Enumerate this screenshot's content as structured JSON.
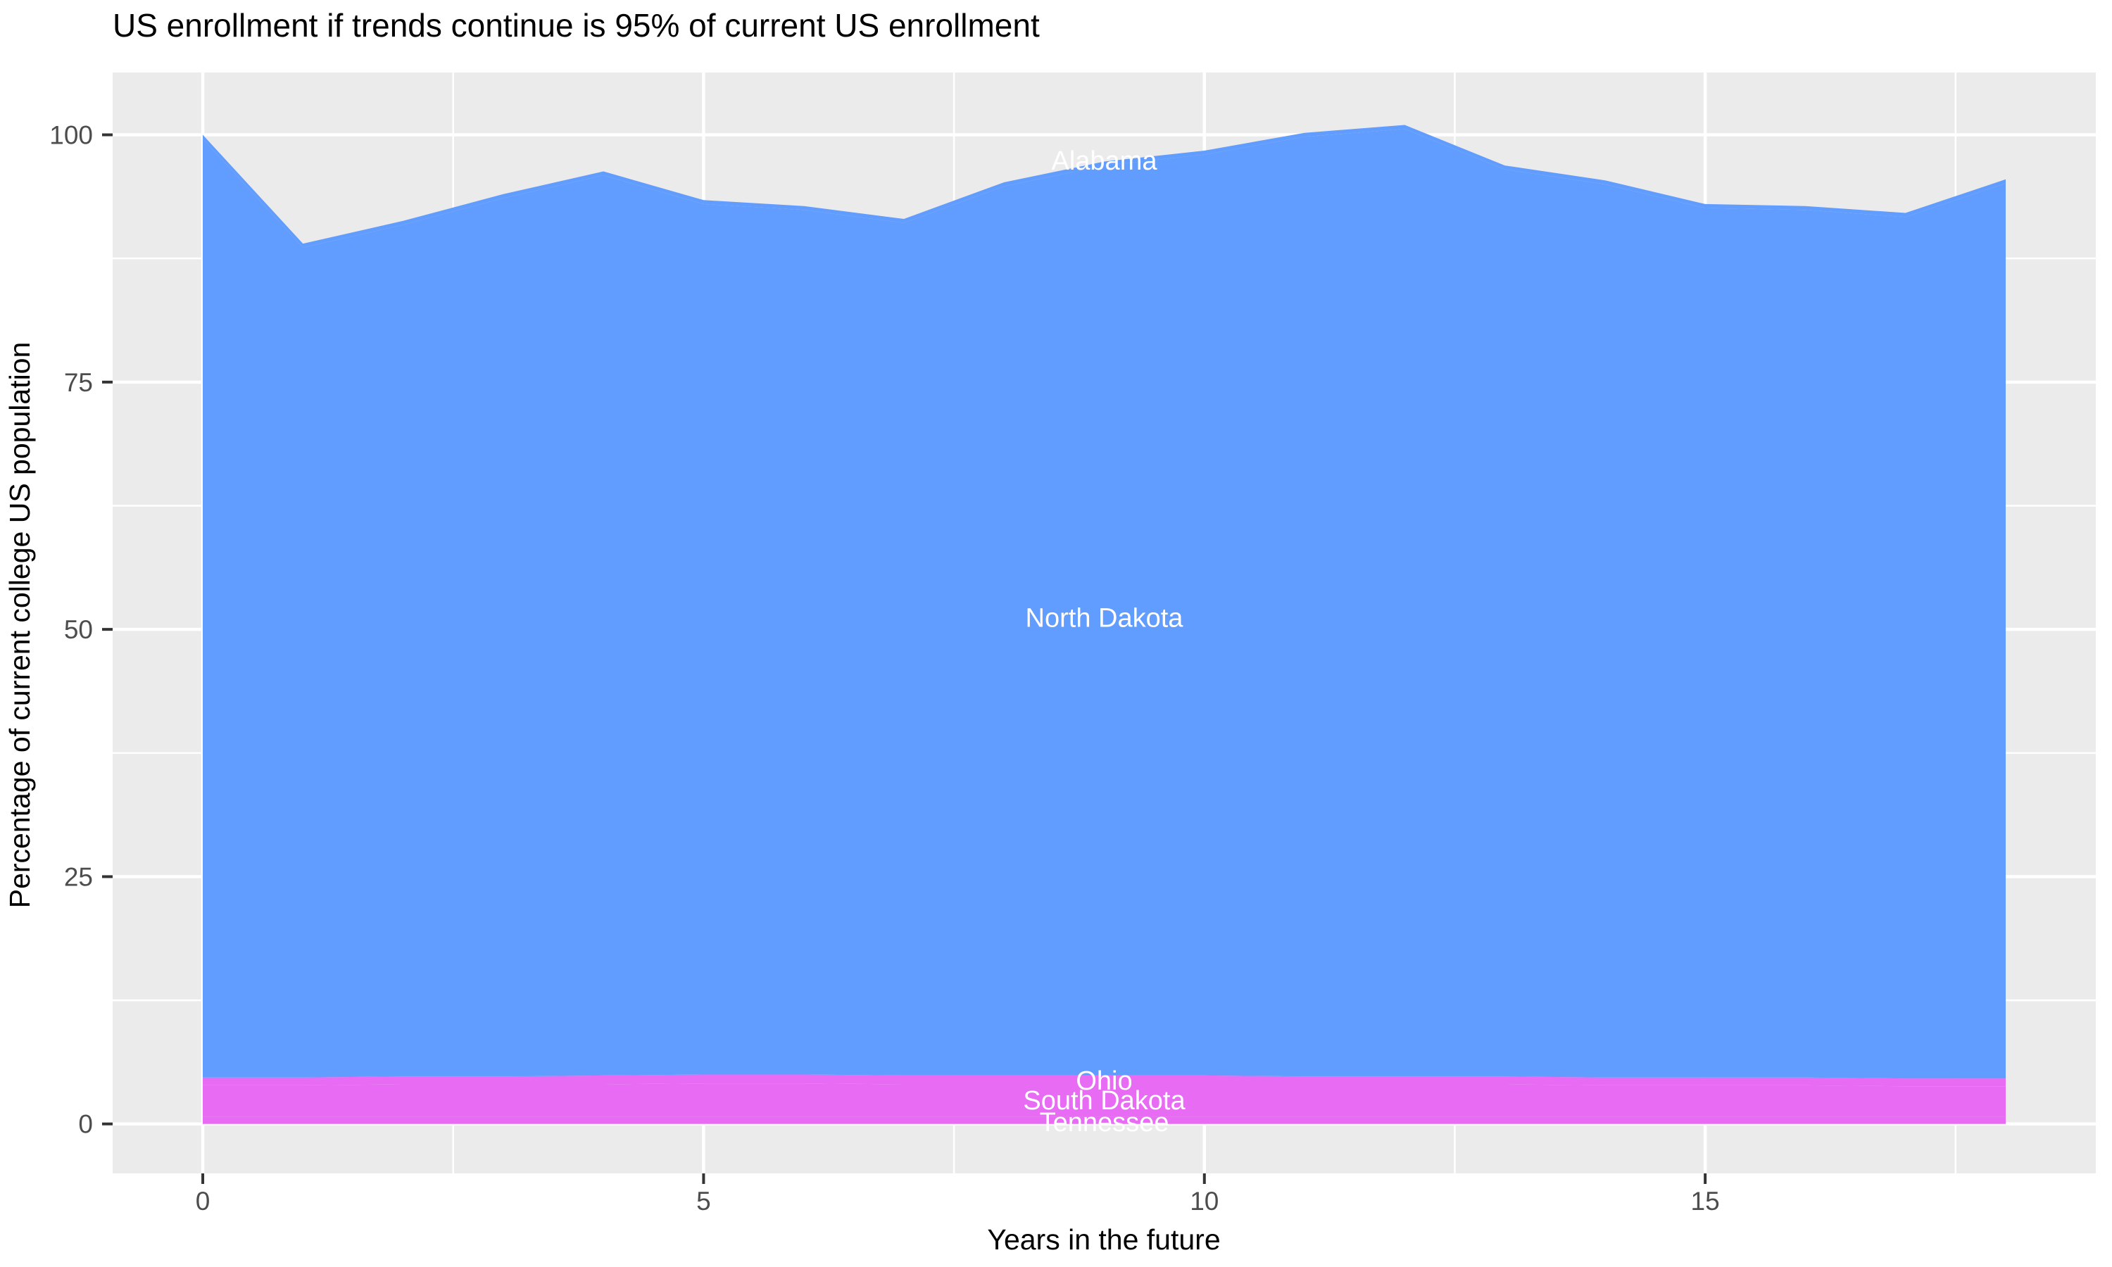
{
  "title": "US enrollment if trends continue is 95% of current US enrollment",
  "chart_data": {
    "type": "area",
    "stacked": true,
    "title": "US enrollment if trends continue is 95% of current US enrollment",
    "xlabel": "Years in the future",
    "ylabel": "Percentage of current college US population",
    "x": [
      0,
      1,
      2,
      3,
      4,
      5,
      6,
      7,
      8,
      9,
      10,
      11,
      12,
      13,
      14,
      15,
      16,
      17,
      18
    ],
    "x_tick_labels": [
      "0",
      "5",
      "10",
      "15"
    ],
    "x_ticks": [
      0,
      5,
      10,
      15
    ],
    "x_minor_ticks": [
      2.5,
      7.5,
      12.5,
      17.5
    ],
    "y_tick_labels": [
      "0",
      "25",
      "50",
      "75",
      "100"
    ],
    "y_ticks": [
      0,
      25,
      50,
      75,
      100
    ],
    "y_minor_ticks": [
      12.5,
      37.5,
      62.5,
      87.5
    ],
    "xlim": [
      -0.9,
      18.9
    ],
    "ylim": [
      -5.0,
      106.3
    ],
    "grid": "white major and minor gridlines on gray panel",
    "legend": "none (direct white labels inside bands at x=9)",
    "series": [
      {
        "name": "Tennessee",
        "color": "#E76BF3",
        "label": {
          "text": "Tennessee",
          "x": 9.0,
          "y": 0.2
        },
        "values": [
          0.7,
          0.7,
          0.7,
          0.7,
          0.7,
          0.7,
          0.7,
          0.7,
          0.7,
          0.7,
          0.7,
          0.7,
          0.7,
          0.7,
          0.7,
          0.7,
          0.7,
          0.7,
          0.7
        ]
      },
      {
        "name": "South Dakota",
        "color": "#E76BF3",
        "label": {
          "text": "South Dakota",
          "x": 9.0,
          "y": 2.4
        },
        "values": [
          3.2,
          3.2,
          3.3,
          3.3,
          3.3,
          3.4,
          3.4,
          3.3,
          3.3,
          3.3,
          3.3,
          3.3,
          3.3,
          3.3,
          3.2,
          3.2,
          3.2,
          3.1,
          3.1
        ]
      },
      {
        "name": "Ohio",
        "color": "#E76BF3",
        "label": {
          "text": "Ohio",
          "x": 9.0,
          "y": 4.4
        },
        "values": [
          0.8,
          0.8,
          0.8,
          0.8,
          0.9,
          0.9,
          0.9,
          0.9,
          0.9,
          0.9,
          0.9,
          0.8,
          0.8,
          0.8,
          0.8,
          0.8,
          0.8,
          0.8,
          0.8
        ]
      },
      {
        "name": "North Dakota",
        "color": "#619CFF",
        "label": {
          "text": "North Dakota",
          "x": 9.0,
          "y": 51.2
        },
        "values": [
          94.9,
          83.9,
          86.1,
          88.8,
          91.0,
          88.0,
          87.4,
          86.2,
          89.9,
          92.0,
          93.1,
          95.0,
          95.8,
          91.7,
          90.3,
          87.9,
          87.7,
          87.1,
          90.5
        ]
      },
      {
        "name": "Alabama",
        "color": "#619CFF",
        "label": {
          "text": "Alabama",
          "x": 9.0,
          "y": 97.4
        },
        "values": [
          0.4,
          0.4,
          0.4,
          0.4,
          0.4,
          0.4,
          0.4,
          0.4,
          0.4,
          0.4,
          0.4,
          0.4,
          0.4,
          0.4,
          0.4,
          0.4,
          0.4,
          0.4,
          0.4
        ]
      }
    ],
    "stacked_totals": [
      100,
      89,
      91.3,
      94,
      96.3,
      93.4,
      92.8,
      91.5,
      95.2,
      97.3,
      98.4,
      100.2,
      101,
      96.9,
      95.4,
      93,
      92.8,
      92.1,
      95.5
    ]
  },
  "colors": {
    "background": "#FFFFFF",
    "panel": "#EBEBEB",
    "gridline": "#FFFFFF",
    "tick_mark": "#333333",
    "tick_label": "#4D4D4D",
    "axis_title": "#000000",
    "title": "#000000",
    "series_label_text": "#FFFFFF",
    "area_blue": "#619CFF",
    "area_magenta": "#E76BF3"
  }
}
